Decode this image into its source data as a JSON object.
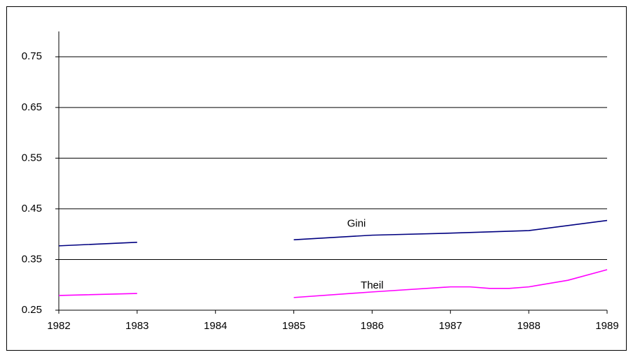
{
  "chart_data": {
    "type": "line",
    "annotations": [
      {
        "text": "Gini",
        "x": 1985.8,
        "y": 0.42
      },
      {
        "text": "Theil",
        "x": 1986.0,
        "y": 0.298
      }
    ],
    "series": [
      {
        "name": "Gini",
        "color": "#000080",
        "x": [
          1982,
          1983,
          1984,
          1985,
          1986,
          1987,
          1988,
          1989
        ],
        "values": [
          0.377,
          0.384,
          null,
          0.389,
          0.398,
          0.402,
          0.407,
          0.427
        ]
      },
      {
        "name": "Theil",
        "color": "#ff00ff",
        "x": [
          1982,
          1983,
          1984,
          1985,
          1986,
          1987,
          1987.25,
          1987.5,
          1987.75,
          1988,
          1988.5,
          1989
        ],
        "values": [
          0.279,
          0.283,
          null,
          0.275,
          0.286,
          0.296,
          0.296,
          0.293,
          0.293,
          0.296,
          0.309,
          0.33
        ]
      }
    ],
    "xlim": [
      1982,
      1989
    ],
    "xticks": [
      1982,
      1983,
      1984,
      1985,
      1986,
      1987,
      1988,
      1989
    ],
    "ylim": [
      0.25,
      0.8
    ],
    "yticks": [
      0.25,
      0.35,
      0.45,
      0.55,
      0.65,
      0.75
    ],
    "grid": true,
    "legend": false
  }
}
